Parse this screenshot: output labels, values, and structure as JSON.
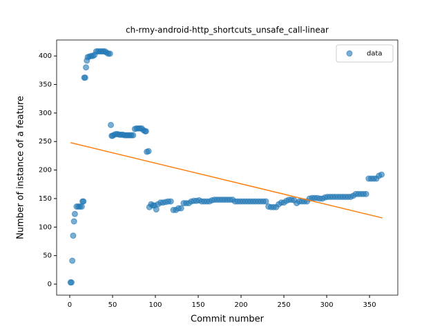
{
  "chart_data": {
    "type": "scatter",
    "title": "ch-rmy-android-http_shortcuts_unsafe_call-linear",
    "xlabel": "Commit number",
    "ylabel": "Number of instance of a feature",
    "xlim": [
      -15.3,
      383
    ],
    "ylim": [
      -19.3,
      428
    ],
    "xticks": [
      0,
      50,
      100,
      150,
      200,
      250,
      300,
      350
    ],
    "yticks": [
      0,
      50,
      100,
      150,
      200,
      250,
      300,
      350,
      400
    ],
    "legend": "upper right",
    "series": [
      {
        "name": "data",
        "color": "#1f77b4",
        "x": [
          1,
          2,
          3,
          4,
          5,
          6,
          8,
          10,
          12,
          14,
          15,
          16,
          17,
          18,
          19,
          20,
          21,
          23,
          25,
          27,
          29,
          31,
          33,
          35,
          37,
          39,
          41,
          43,
          45,
          47,
          48,
          49,
          50,
          52,
          54,
          56,
          58,
          60,
          62,
          64,
          66,
          68,
          70,
          72,
          74,
          76,
          78,
          80,
          82,
          84,
          86,
          88,
          89,
          90,
          92,
          93,
          95,
          97,
          99,
          101,
          103,
          106,
          109,
          112,
          115,
          118,
          121,
          124,
          127,
          130,
          133,
          136,
          139,
          142,
          145,
          148,
          151,
          154,
          157,
          160,
          163,
          166,
          169,
          172,
          175,
          178,
          181,
          184,
          187,
          190,
          193,
          196,
          199,
          202,
          205,
          208,
          211,
          214,
          217,
          220,
          223,
          226,
          229,
          232,
          235,
          238,
          241,
          244,
          247,
          250,
          253,
          256,
          259,
          262,
          265,
          268,
          271,
          274,
          277,
          280,
          283,
          286,
          289,
          292,
          295,
          298,
          301,
          304,
          307,
          310,
          313,
          316,
          319,
          322,
          325,
          328,
          331,
          334,
          337,
          340,
          343,
          346,
          349,
          352,
          355,
          358,
          361,
          364
        ],
        "values": [
          3,
          3,
          41,
          85,
          110,
          123,
          136,
          136,
          136,
          136,
          145,
          145,
          362,
          362,
          380,
          392,
          398,
          399,
          400,
          400,
          402,
          408,
          408,
          408,
          408,
          408,
          408,
          406,
          404,
          404,
          279,
          260,
          260,
          262,
          263,
          263,
          262,
          262,
          262,
          261,
          261,
          261,
          261,
          261,
          261,
          272,
          273,
          273,
          273,
          273,
          270,
          268,
          268,
          232,
          233,
          135,
          140,
          138,
          138,
          131,
          140,
          143,
          143,
          144,
          145,
          145,
          130,
          130,
          133,
          133,
          142,
          142,
          142,
          145,
          146,
          146,
          147,
          145,
          145,
          145,
          145,
          147,
          148,
          148,
          148,
          148,
          148,
          148,
          148,
          148,
          145,
          145,
          145,
          145,
          145,
          145,
          145,
          145,
          145,
          145,
          145,
          145,
          145,
          136,
          135,
          135,
          135,
          140,
          143,
          143,
          146,
          148,
          148,
          147,
          142,
          145,
          145,
          145,
          145,
          150,
          151,
          151,
          151,
          150,
          150,
          152,
          153,
          153,
          153,
          153,
          153,
          153,
          153,
          153,
          153,
          153,
          155,
          158,
          158,
          158,
          158,
          158,
          185,
          185,
          185,
          185,
          190,
          192
        ]
      }
    ],
    "fit": {
      "color": "#ff7f0e",
      "x": [
        1,
        365
      ],
      "values": [
        248,
        116
      ]
    }
  }
}
